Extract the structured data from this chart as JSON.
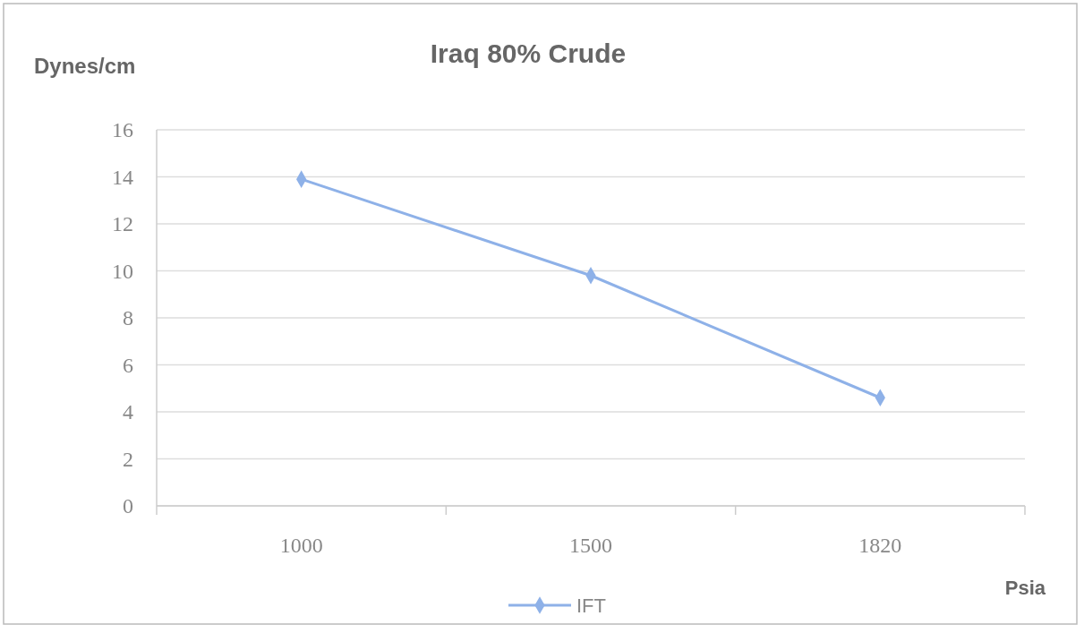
{
  "chart_data": {
    "type": "line",
    "title": "Iraq 80% Crude",
    "ylabel": "Dynes/cm",
    "xlabel": "Psia",
    "categories": [
      "1000",
      "1500",
      "1820"
    ],
    "series": [
      {
        "name": "IFT",
        "color": "#8eb1e8",
        "values": [
          13.9,
          9.8,
          4.6
        ]
      }
    ],
    "ylim": [
      0,
      16
    ],
    "yticks": [
      0,
      2,
      4,
      6,
      8,
      10,
      12,
      14,
      16
    ],
    "grid": "y",
    "legend": "bottom",
    "marker": "diamond"
  }
}
